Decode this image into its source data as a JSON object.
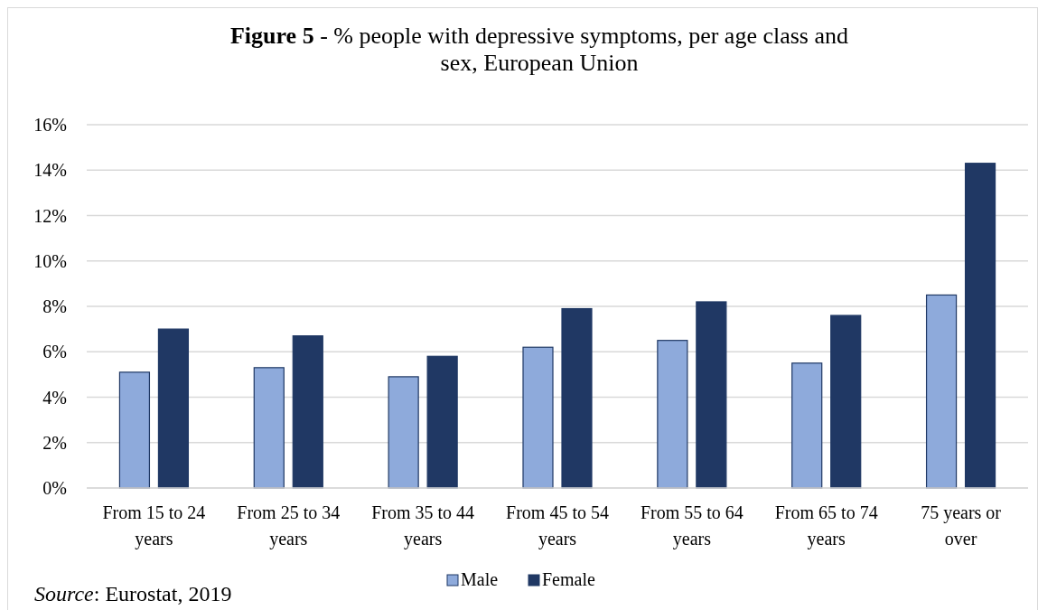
{
  "chart_data": {
    "type": "bar",
    "title": "Figure 5 - % people with depressive symptoms, per age class and sex, European Union",
    "categories": [
      "From 15 to 24 years",
      "From 25 to 34 years",
      "From 35 to 44 years",
      "From 45 to 54 years",
      "From 55 to 64 years",
      "From 65 to 74 years",
      "75 years or over"
    ],
    "series": [
      {
        "name": "Male",
        "color": "#8eaadb",
        "values": [
          5.1,
          5.3,
          4.9,
          6.2,
          6.5,
          5.5,
          8.5
        ]
      },
      {
        "name": "Female",
        "color": "#203864",
        "values": [
          7.0,
          6.7,
          5.8,
          7.9,
          8.2,
          7.6,
          14.3
        ]
      }
    ],
    "ylim": [
      0,
      16
    ],
    "yticks": [
      {
        "value": 0,
        "label": "0%"
      },
      {
        "value": 2,
        "label": "2%"
      },
      {
        "value": 4,
        "label": "4%"
      },
      {
        "value": 6,
        "label": "6%"
      },
      {
        "value": 8,
        "label": "8%"
      },
      {
        "value": 10,
        "label": "10%"
      },
      {
        "value": 12,
        "label": "12%"
      },
      {
        "value": 14,
        "label": "14%"
      },
      {
        "value": 16,
        "label": "16%"
      }
    ],
    "grid": "y",
    "legend": "bottom",
    "annotations": [
      "Source: Eurostat, 2019"
    ]
  }
}
